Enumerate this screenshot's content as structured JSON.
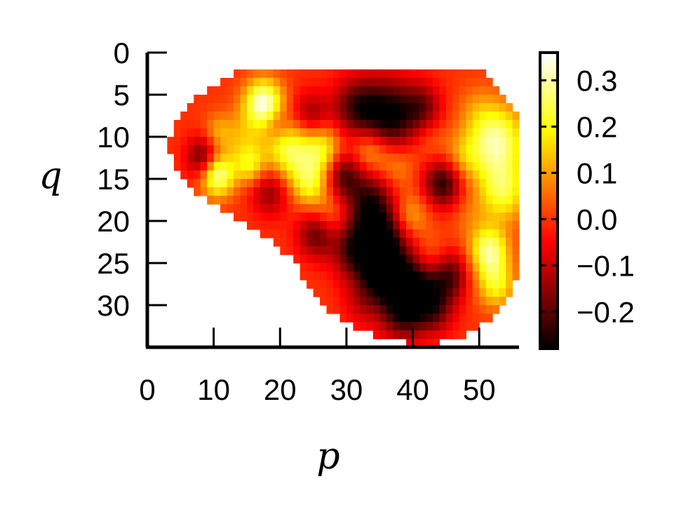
{
  "chart_data": {
    "type": "heatmap",
    "title": "",
    "xlabel": "p",
    "ylabel": "q",
    "xlim": [
      0,
      56
    ],
    "ylim": [
      35,
      0
    ],
    "x_ticks": [
      0,
      10,
      20,
      30,
      40,
      50
    ],
    "y_ticks": [
      0,
      5,
      10,
      15,
      20,
      25,
      30
    ],
    "colormap": "hot",
    "colorbar": {
      "min": -0.28,
      "max": 0.36,
      "ticks": [
        0.3,
        0.2,
        0.1,
        0.0,
        -0.1,
        -0.2
      ],
      "tick_labels": [
        "0.3",
        "0.2",
        "0.1",
        "0.0",
        "−0.1",
        "−0.2"
      ]
    },
    "grid": false,
    "grid_size": {
      "cols": 56,
      "rows": 35
    },
    "mask_rows": [
      {
        "q": 0,
        "p_start": null,
        "p_end": null
      },
      {
        "q": 1,
        "p_start": null,
        "p_end": null
      },
      {
        "q": 2,
        "p_start": 13,
        "p_end": 50
      },
      {
        "q": 3,
        "p_start": 11,
        "p_end": 51
      },
      {
        "q": 4,
        "p_start": 9,
        "p_end": 52
      },
      {
        "q": 5,
        "p_start": 7,
        "p_end": 53
      },
      {
        "q": 6,
        "p_start": 6,
        "p_end": 54
      },
      {
        "q": 7,
        "p_start": 5,
        "p_end": 55
      },
      {
        "q": 8,
        "p_start": 4,
        "p_end": 55
      },
      {
        "q": 9,
        "p_start": 4,
        "p_end": 55
      },
      {
        "q": 10,
        "p_start": 3,
        "p_end": 55
      },
      {
        "q": 11,
        "p_start": 3,
        "p_end": 55
      },
      {
        "q": 12,
        "p_start": 4,
        "p_end": 55
      },
      {
        "q": 13,
        "p_start": 4,
        "p_end": 55
      },
      {
        "q": 14,
        "p_start": 5,
        "p_end": 55
      },
      {
        "q": 15,
        "p_start": 6,
        "p_end": 55
      },
      {
        "q": 16,
        "p_start": 7,
        "p_end": 55
      },
      {
        "q": 17,
        "p_start": 9,
        "p_end": 55
      },
      {
        "q": 18,
        "p_start": 11,
        "p_end": 55
      },
      {
        "q": 19,
        "p_start": 13,
        "p_end": 55
      },
      {
        "q": 20,
        "p_start": 15,
        "p_end": 55
      },
      {
        "q": 21,
        "p_start": 17,
        "p_end": 55
      },
      {
        "q": 22,
        "p_start": 19,
        "p_end": 55
      },
      {
        "q": 23,
        "p_start": 20,
        "p_end": 55
      },
      {
        "q": 24,
        "p_start": 22,
        "p_end": 55
      },
      {
        "q": 25,
        "p_start": 23,
        "p_end": 55
      },
      {
        "q": 26,
        "p_start": 23,
        "p_end": 55
      },
      {
        "q": 27,
        "p_start": 24,
        "p_end": 54
      },
      {
        "q": 28,
        "p_start": 25,
        "p_end": 54
      },
      {
        "q": 29,
        "p_start": 26,
        "p_end": 53
      },
      {
        "q": 30,
        "p_start": 27,
        "p_end": 52
      },
      {
        "q": 31,
        "p_start": 29,
        "p_end": 51
      },
      {
        "q": 32,
        "p_start": 31,
        "p_end": 49
      },
      {
        "q": 33,
        "p_start": 34,
        "p_end": 47
      },
      {
        "q": 34,
        "p_start": 39,
        "p_end": 43
      }
    ],
    "features": [
      {
        "p": 17,
        "q": 5.5,
        "value": 0.34,
        "radius": 2.0
      },
      {
        "p": 10,
        "q": 14,
        "value": 0.32,
        "radius": 1.8
      },
      {
        "p": 8,
        "q": 12,
        "value": -0.22,
        "radius": 1.8
      },
      {
        "p": 14,
        "q": 10,
        "value": 0.12,
        "radius": 2.5
      },
      {
        "p": 21,
        "q": 11,
        "value": 0.25,
        "radius": 2.5
      },
      {
        "p": 26,
        "q": 11,
        "value": 0.2,
        "radius": 2.0
      },
      {
        "p": 24,
        "q": 7,
        "value": -0.15,
        "radius": 2.0
      },
      {
        "p": 19,
        "q": 8,
        "value": -0.1,
        "radius": 1.5
      },
      {
        "p": 31,
        "q": 6,
        "value": -0.2,
        "radius": 2.5
      },
      {
        "p": 36,
        "q": 7,
        "value": -0.28,
        "radius": 3.0
      },
      {
        "p": 41,
        "q": 6,
        "value": -0.15,
        "radius": 2.0
      },
      {
        "p": 42,
        "q": 10,
        "value": 0.05,
        "radius": 2.0
      },
      {
        "p": 33,
        "q": 11,
        "value": 0.15,
        "radius": 2.0
      },
      {
        "p": 37,
        "q": 13,
        "value": 0.1,
        "radius": 2.0
      },
      {
        "p": 29,
        "q": 14,
        "value": -0.2,
        "radius": 2.0
      },
      {
        "p": 24,
        "q": 15,
        "value": 0.2,
        "radius": 2.0
      },
      {
        "p": 18,
        "q": 16,
        "value": -0.15,
        "radius": 2.0
      },
      {
        "p": 15,
        "q": 13,
        "value": 0.15,
        "radius": 1.5
      },
      {
        "p": 33,
        "q": 17,
        "value": -0.2,
        "radius": 2.5
      },
      {
        "p": 27,
        "q": 19,
        "value": 0.1,
        "radius": 2.0
      },
      {
        "p": 25,
        "q": 21,
        "value": -0.2,
        "radius": 2.0
      },
      {
        "p": 35,
        "q": 22,
        "value": -0.3,
        "radius": 3.0
      },
      {
        "p": 31,
        "q": 23,
        "value": -0.2,
        "radius": 2.5
      },
      {
        "p": 39,
        "q": 19,
        "value": 0.15,
        "radius": 2.0
      },
      {
        "p": 44,
        "q": 15,
        "value": -0.25,
        "radius": 2.0
      },
      {
        "p": 47,
        "q": 12,
        "value": 0.1,
        "radius": 2.0
      },
      {
        "p": 48,
        "q": 19,
        "value": 0.05,
        "radius": 2.0
      },
      {
        "p": 42,
        "q": 24,
        "value": 0.1,
        "radius": 2.0
      },
      {
        "p": 45,
        "q": 26,
        "value": -0.2,
        "radius": 2.0
      },
      {
        "p": 40,
        "q": 27,
        "value": -0.25,
        "radius": 2.5
      },
      {
        "p": 35,
        "q": 26,
        "value": -0.2,
        "radius": 2.0
      },
      {
        "p": 38,
        "q": 30,
        "value": -0.25,
        "radius": 2.5
      },
      {
        "p": 43,
        "q": 30,
        "value": -0.15,
        "radius": 2.0
      },
      {
        "p": 32,
        "q": 29,
        "value": -0.1,
        "radius": 2.0
      },
      {
        "p": 52,
        "q": 10,
        "value": 0.3,
        "radius": 3.0
      },
      {
        "p": 53,
        "q": 16,
        "value": 0.22,
        "radius": 2.5
      },
      {
        "p": 51,
        "q": 23,
        "value": 0.28,
        "radius": 2.0
      },
      {
        "p": 52,
        "q": 27,
        "value": 0.2,
        "radius": 2.0
      },
      {
        "p": 49,
        "q": 6,
        "value": 0.05,
        "radius": 2.0
      },
      {
        "p": 10,
        "q": 9,
        "value": 0.1,
        "radius": 1.5
      }
    ]
  }
}
